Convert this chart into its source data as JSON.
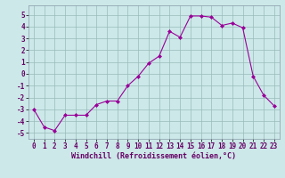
{
  "x": [
    0,
    1,
    2,
    3,
    4,
    5,
    6,
    7,
    8,
    9,
    10,
    11,
    12,
    13,
    14,
    15,
    16,
    17,
    18,
    19,
    20,
    21,
    22,
    23
  ],
  "y": [
    -3,
    -4.5,
    -4.8,
    -3.5,
    -3.5,
    -3.5,
    -2.6,
    -2.3,
    -2.3,
    -1.0,
    -0.2,
    0.9,
    1.5,
    3.6,
    3.1,
    4.9,
    4.9,
    4.8,
    4.1,
    4.3,
    3.9,
    -0.2,
    -1.8,
    -2.7
  ],
  "xlabel": "Windchill (Refroidissement éolien,°C)",
  "line_color": "#990099",
  "marker": "D",
  "marker_size": 2.0,
  "background_color": "#cce8e8",
  "grid_color": "#99bbbb",
  "ylim": [
    -5.5,
    5.8
  ],
  "xlim": [
    -0.5,
    23.5
  ],
  "yticks": [
    -5,
    -4,
    -3,
    -2,
    -1,
    0,
    1,
    2,
    3,
    4,
    5
  ],
  "xticks": [
    0,
    1,
    2,
    3,
    4,
    5,
    6,
    7,
    8,
    9,
    10,
    11,
    12,
    13,
    14,
    15,
    16,
    17,
    18,
    19,
    20,
    21,
    22,
    23
  ],
  "tick_fontsize": 5.5,
  "xlabel_fontsize": 6.0,
  "xlabel_color": "#660066",
  "spine_color": "#8899aa"
}
